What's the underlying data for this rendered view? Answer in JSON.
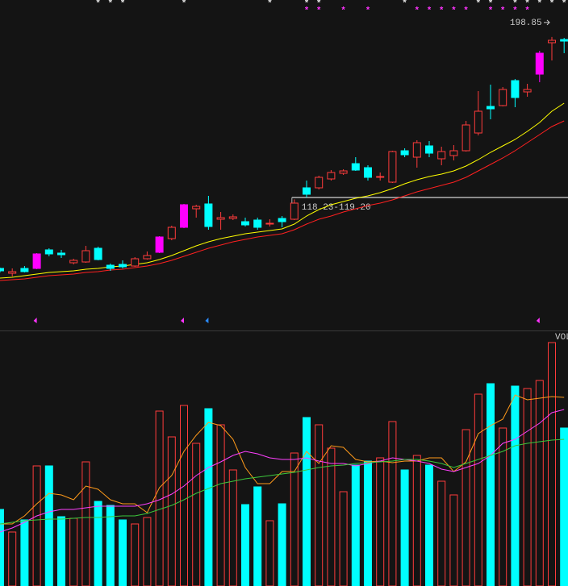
{
  "chart_data": [
    {
      "type": "candlestick",
      "open": [
        84.0,
        81.6,
        84.0,
        84.0,
        93.2,
        91.6,
        86.8,
        87.2,
        94.0,
        85.6,
        86.0,
        85.2,
        88.8,
        92.0,
        98.8,
        104.4,
        113.6,
        116.0,
        108.4,
        108.8,
        107.2,
        108.0,
        106.0,
        108.8,
        108.4,
        124.0,
        124.0,
        128.4,
        131.2,
        136.0,
        134.0,
        129.2,
        126.8,
        142.4,
        139.2,
        144.8,
        138.4,
        140.0,
        142.4,
        151.2,
        164.4,
        164.8,
        177.2,
        171.6,
        180.4,
        196.0,
        197.6
      ],
      "high": [
        84.4,
        84.0,
        85.2,
        91.6,
        94.0,
        93.2,
        88.8,
        95.2,
        94.8,
        86.4,
        88.0,
        89.6,
        92.4,
        100.0,
        105.2,
        116.0,
        115.6,
        120.0,
        112.0,
        110.8,
        109.2,
        109.2,
        108.4,
        110.0,
        118.23,
        127.6,
        130.0,
        132.8,
        133.2,
        139.2,
        135.2,
        131.6,
        142.4,
        143.6,
        147.6,
        147.2,
        144.4,
        145.2,
        157.2,
        172.0,
        175.2,
        174.0,
        178.0,
        175.6,
        192.0,
        198.85,
        198.4
      ],
      "low": [
        82.0,
        80.0,
        82.0,
        83.6,
        90.0,
        89.2,
        86.0,
        86.8,
        88.0,
        82.8,
        84.0,
        84.8,
        88.4,
        91.6,
        98.0,
        104.0,
        109.2,
        103.2,
        103.2,
        108.0,
        104.8,
        103.2,
        104.8,
        104.4,
        108.0,
        119.2,
        123.2,
        127.6,
        130.4,
        132.4,
        127.6,
        127.6,
        126.4,
        139.2,
        134.0,
        139.2,
        135.2,
        137.6,
        142.0,
        150.0,
        158.0,
        164.4,
        164.0,
        169.2,
        176.4,
        187.2,
        190.8
      ],
      "close": [
        82.8,
        82.4,
        82.4,
        91.2,
        91.2,
        90.8,
        88.0,
        92.8,
        88.4,
        84.0,
        84.8,
        88.8,
        90.4,
        99.6,
        104.4,
        115.6,
        114.8,
        104.8,
        109.2,
        109.6,
        105.6,
        104.4,
        106.4,
        107.2,
        116.4,
        120.8,
        129.2,
        131.6,
        132.4,
        132.8,
        129.2,
        129.6,
        142.0,
        140.4,
        146.4,
        141.2,
        142.0,
        142.4,
        155.2,
        162.0,
        163.2,
        172.8,
        168.8,
        172.8,
        190.8,
        197.2,
        196.8
      ],
      "up_color": "#ff3b3b",
      "down_color": "#00ffff",
      "limit_up_color": "#ff00ff",
      "limit_up": [
        3,
        13,
        15,
        44
      ],
      "ylim": [
        53.2,
        217.2
      ],
      "series": [
        {
          "color": "#ffff00",
          "values": [
            79.2,
            79.6,
            80.4,
            81.2,
            82.0,
            82.4,
            82.8,
            83.6,
            84.0,
            84.8,
            85.2,
            86.0,
            86.8,
            88.4,
            90.4,
            92.8,
            95.2,
            97.2,
            98.8,
            100.0,
            101.2,
            102.0,
            102.8,
            103.6,
            106.0,
            110.0,
            113.2,
            115.6,
            117.2,
            118.8,
            120.0,
            121.6,
            123.6,
            126.0,
            128.0,
            129.6,
            130.8,
            132.4,
            134.8,
            138.0,
            141.6,
            144.8,
            148.0,
            152.0,
            156.4,
            162.0,
            166.0
          ]
        },
        {
          "color": "#ff2020",
          "values": [
            78.0,
            78.4,
            78.8,
            79.6,
            80.4,
            80.8,
            81.2,
            82.0,
            82.4,
            83.2,
            83.6,
            84.4,
            85.2,
            86.4,
            88.0,
            90.0,
            92.0,
            94.0,
            95.6,
            97.2,
            98.4,
            99.6,
            100.4,
            101.2,
            103.2,
            106.0,
            108.4,
            110.0,
            112.0,
            113.6,
            115.2,
            116.4,
            118.0,
            120.0,
            122.0,
            123.6,
            125.2,
            126.8,
            129.2,
            132.4,
            135.6,
            138.8,
            142.4,
            146.4,
            150.4,
            154.4,
            157.2
          ]
        }
      ],
      "gap": {
        "label": "118.23-119.20",
        "low": 118.23,
        "high": 119.2,
        "start": 24,
        "color": "#b4b4b4"
      },
      "high_label_index": 45,
      "signals": {
        "symbol": "*",
        "rows": [
          {
            "color": "#e6e6e6",
            "indices": [
              8,
              9,
              10,
              15,
              22,
              25,
              26,
              33,
              39,
              40,
              42,
              43,
              44,
              45,
              46
            ]
          },
          {
            "color": "#ff33ff",
            "indices": [
              25,
              26,
              28,
              30,
              34,
              35,
              36,
              37,
              38,
              40,
              41,
              42,
              43
            ]
          }
        ]
      },
      "flags": [
        {
          "color": "#ff33ff",
          "indices": [
            3,
            15,
            44
          ]
        },
        {
          "color": "#2a8cff",
          "indices": [
            17
          ]
        }
      ]
    },
    {
      "type": "volume",
      "title": "VOL",
      "values": [
        95,
        67,
        82,
        149,
        149,
        86,
        84,
        154,
        105,
        100,
        82,
        77,
        85,
        217,
        185,
        224,
        177,
        220,
        200,
        144,
        101,
        123,
        81,
        102,
        165,
        209,
        200,
        171,
        117,
        150,
        155,
        159,
        204,
        144,
        162,
        150,
        130,
        113,
        194,
        238,
        251,
        196,
        248,
        245,
        255,
        302,
        196
      ],
      "ylim": [
        0,
        317
      ],
      "series": [
        {
          "color": "#ff9a1a",
          "values": [
            77,
            77,
            87,
            102,
            115,
            113,
            107,
            124,
            120,
            107,
            102,
            102,
            91,
            122,
            137,
            167,
            187,
            203,
            199,
            182,
            147,
            127,
            127,
            142,
            142,
            167,
            152,
            174,
            172,
            157,
            154,
            155,
            153,
            155,
            155,
            159,
            159,
            142,
            154,
            189,
            199,
            207,
            237,
            231,
            233,
            235,
            234
          ]
        },
        {
          "color": "#ff40ff",
          "values": [
            67,
            72,
            79,
            87,
            92,
            95,
            95,
            97,
            99,
            99,
            99,
            99,
            102,
            107,
            114,
            124,
            137,
            147,
            154,
            162,
            167,
            164,
            159,
            157,
            157,
            159,
            155,
            152,
            152,
            149,
            152,
            155,
            159,
            157,
            155,
            152,
            145,
            142,
            147,
            152,
            162,
            177,
            182,
            192,
            202,
            215,
            219
          ]
        },
        {
          "color": "#3cc83c",
          "values": [
            77,
            79,
            81,
            82,
            83,
            83,
            84,
            85,
            85,
            86,
            87,
            87,
            90,
            95,
            100,
            107,
            115,
            121,
            127,
            130,
            133,
            135,
            137,
            139,
            141,
            144,
            147,
            149,
            150,
            152,
            153,
            154,
            155,
            157,
            157,
            155,
            152,
            147,
            152,
            157,
            162,
            167,
            174,
            177,
            179,
            181,
            182
          ]
        }
      ]
    }
  ]
}
